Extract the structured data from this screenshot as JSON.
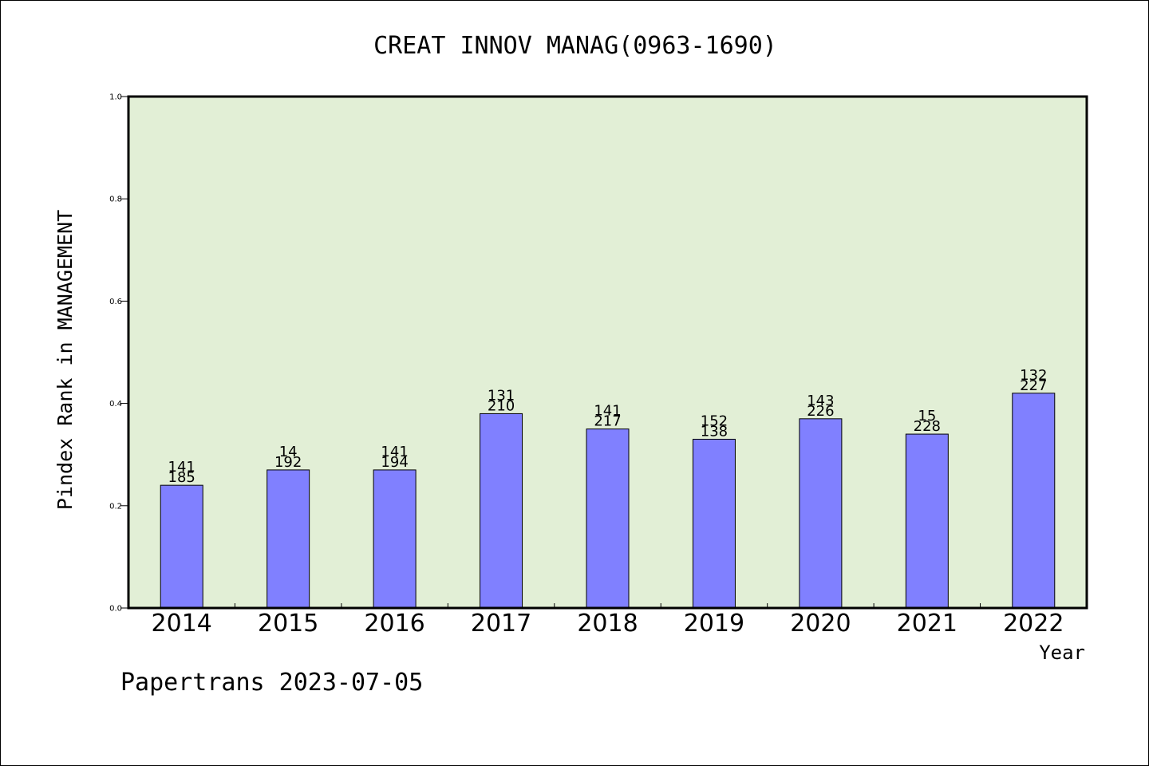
{
  "chart_data": {
    "type": "bar",
    "title": "CREAT INNOV MANAG(0963-1690)",
    "xlabel": "Year",
    "ylabel": "Pindex Rank in MANAGEMENT",
    "ylim": [
      0,
      1.0
    ],
    "yticks": [
      "0.0",
      "0.2",
      "0.4",
      "0.6",
      "0.8",
      "1.0"
    ],
    "categories": [
      "2014",
      "2015",
      "2016",
      "2017",
      "2018",
      "2019",
      "2020",
      "2021",
      "2022"
    ],
    "values": [
      0.24,
      0.27,
      0.27,
      0.38,
      0.35,
      0.33,
      0.37,
      0.34,
      0.42
    ],
    "labels_top": [
      "141",
      "14",
      "141",
      "131",
      "141",
      "152",
      "143",
      "15",
      "132"
    ],
    "labels_bottom": [
      "185",
      "192",
      "194",
      "210",
      "217",
      "138",
      "226",
      "228",
      "227"
    ],
    "grid": false,
    "colors": {
      "plot_background": "#e2efd6",
      "bar_fill": "#8080ff",
      "bar_stroke": "#000000"
    }
  },
  "footer": {
    "text": "Papertrans 2023-07-05"
  }
}
